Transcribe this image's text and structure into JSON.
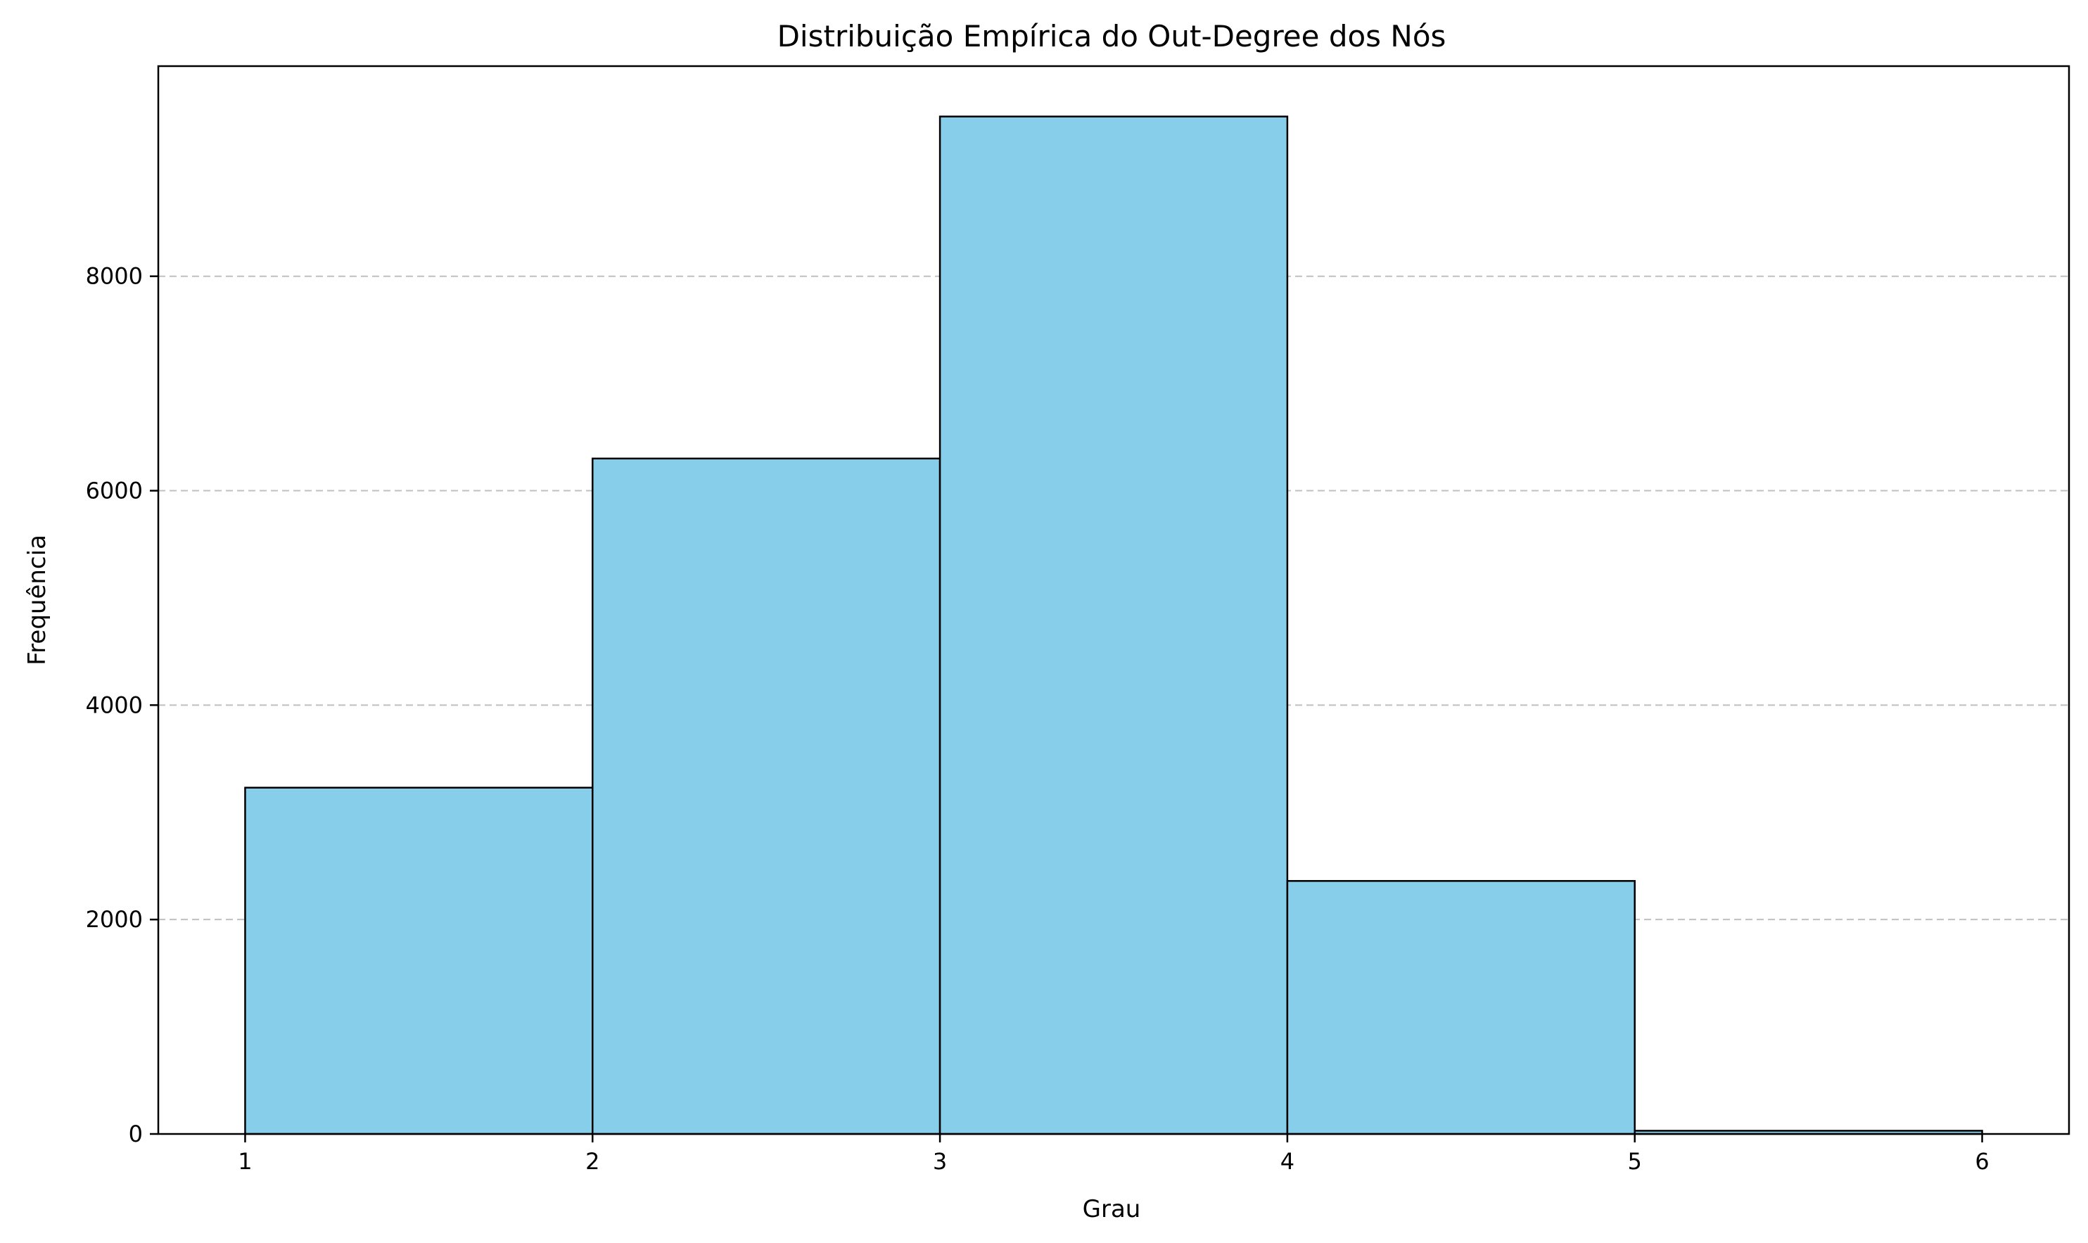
{
  "chart_data": {
    "type": "bar",
    "title": "Distribuição Empírica do Out-Degree dos Nós",
    "xlabel": "Grau",
    "ylabel": "Frequência",
    "bins": [
      {
        "x0": 1,
        "x1": 2,
        "value": 3230
      },
      {
        "x0": 2,
        "x1": 3,
        "value": 6300
      },
      {
        "x0": 3,
        "x1": 4,
        "value": 9490
      },
      {
        "x0": 4,
        "x1": 5,
        "value": 2360
      },
      {
        "x0": 5,
        "x1": 6,
        "value": 30
      }
    ],
    "xlim": [
      0.75,
      6.25
    ],
    "ylim": [
      0,
      9960
    ],
    "xticks": [
      "1",
      "2",
      "3",
      "4",
      "5",
      "6"
    ],
    "yticks": [
      "0",
      "2000",
      "4000",
      "6000",
      "8000"
    ],
    "grid": "y-dashed",
    "colors": {
      "bar_fill": "#87ceeb",
      "bar_edge": "#000000",
      "grid": "#c0c0c0"
    }
  }
}
